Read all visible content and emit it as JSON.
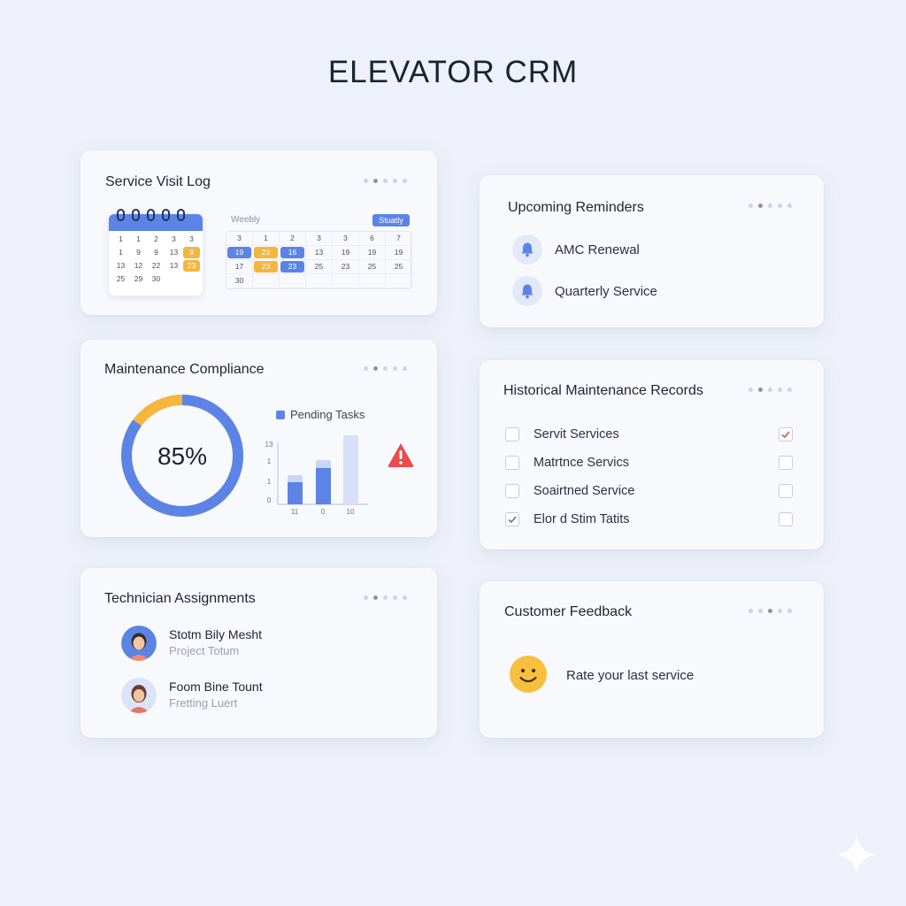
{
  "app": {
    "title": "ELEVATOR CRM"
  },
  "service_log": {
    "title": "Service Visit Log",
    "mini_calendar": [
      [
        "1",
        "1",
        "2",
        "3",
        "3"
      ],
      [
        "1",
        "9",
        "9",
        "13",
        "9"
      ],
      [
        "13",
        "12",
        "22",
        "13",
        "23"
      ],
      [
        "25",
        "29",
        "30",
        "",
        ""
      ]
    ],
    "mini_highlight": [
      "9",
      "23"
    ],
    "weekly_label": "Weebly",
    "badge": "Stuatly",
    "week_grid": [
      [
        "3",
        "1",
        "2",
        "3",
        "3",
        "6",
        "7"
      ],
      [
        "19",
        "23",
        "16",
        "13",
        "19",
        "19",
        "19"
      ],
      [
        "17",
        "23",
        "23",
        "25",
        "23",
        "25",
        "25"
      ],
      [
        "30",
        "",
        "",
        "",
        "",
        "",
        ""
      ]
    ]
  },
  "compliance": {
    "title": "Maintenance Compliance",
    "percent_label": "85%",
    "percent": 85,
    "legend": "Pending Tasks",
    "y_ticks": [
      "13",
      "1",
      "1",
      "0"
    ],
    "x_ticks": [
      "11",
      "0",
      "10"
    ],
    "colors": {
      "blue": "#5b84e6",
      "yellow": "#f4b63f",
      "light_blue": "#c9d6f6",
      "warning": "#ea4b4b"
    }
  },
  "reminders": {
    "title": "Upcoming Reminders",
    "items": [
      {
        "label": "AMC Renewal",
        "icon": "bell-icon"
      },
      {
        "label": "Quarterly Service",
        "icon": "bell-icon"
      }
    ]
  },
  "records": {
    "title": "Historical Maintenance Records",
    "items": [
      {
        "label": "Servit Services",
        "left_checked": false,
        "right_checked": true
      },
      {
        "label": "Matrtnce Servics",
        "left_checked": false,
        "right_checked": false
      },
      {
        "label": "Soairtned Service",
        "left_checked": false,
        "right_checked": false
      },
      {
        "label": "Elor d Stim Tatits",
        "left_checked": true,
        "right_checked": false
      }
    ]
  },
  "technicians": {
    "title": "Technician Assignments",
    "items": [
      {
        "name": "Stotm Bily Mesht",
        "role": "Project Totum"
      },
      {
        "name": "Foom Bine Tount",
        "role": "Fretting Luert"
      }
    ]
  },
  "feedback": {
    "title": "Customer Feedback",
    "prompt": "Rate your last service"
  }
}
